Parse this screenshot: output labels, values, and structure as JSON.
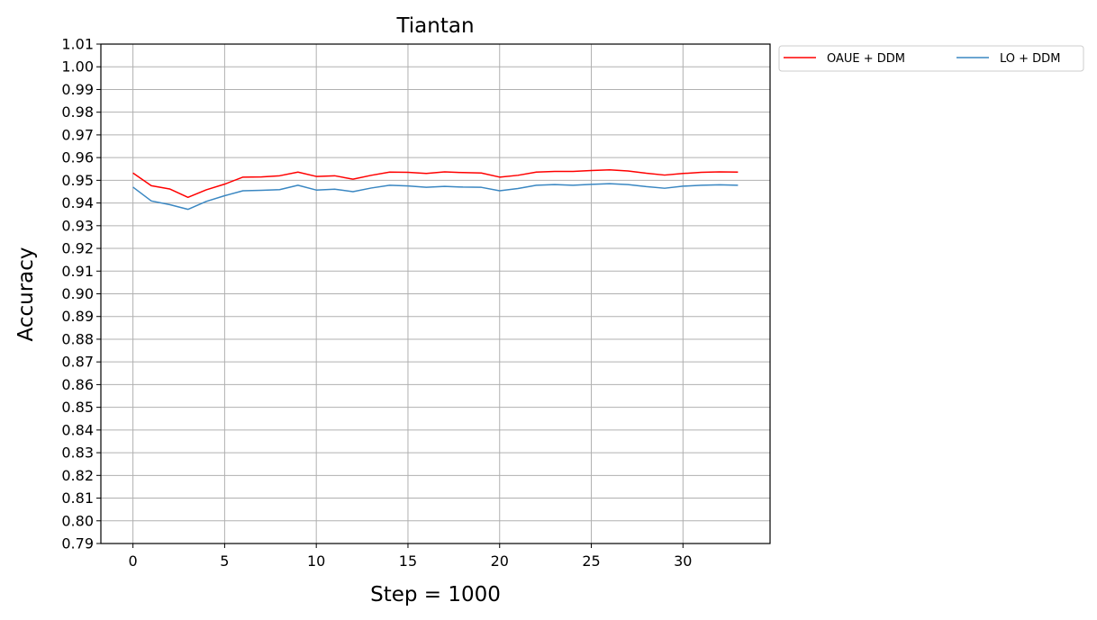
{
  "chart_data": {
    "type": "line",
    "title": "Tiantan",
    "xlabel": "Step = 1000",
    "ylabel": "Accuracy",
    "xlim": [
      -1.75,
      34.75
    ],
    "ylim": [
      0.79,
      1.01
    ],
    "xticks": [
      0,
      5,
      10,
      15,
      20,
      25,
      30
    ],
    "xtick_labels": [
      "0",
      "5",
      "10",
      "15",
      "20",
      "25",
      "30"
    ],
    "yticks": [
      0.79,
      0.8,
      0.81,
      0.82,
      0.83,
      0.84,
      0.85,
      0.86,
      0.87,
      0.88,
      0.89,
      0.9,
      0.91,
      0.92,
      0.93,
      0.94,
      0.95,
      0.96,
      0.97,
      0.98,
      0.99,
      1.0,
      1.01
    ],
    "ytick_labels": [
      "0.79",
      "0.80",
      "0.81",
      "0.82",
      "0.83",
      "0.84",
      "0.85",
      "0.86",
      "0.87",
      "0.88",
      "0.89",
      "0.90",
      "0.91",
      "0.92",
      "0.93",
      "0.94",
      "0.95",
      "0.96",
      "0.97",
      "0.98",
      "0.99",
      "1.00",
      "1.01"
    ],
    "grid": true,
    "legend_position": "outside-top-right",
    "x": [
      0,
      1,
      2,
      3,
      4,
      5,
      6,
      7,
      8,
      9,
      10,
      11,
      12,
      13,
      14,
      15,
      16,
      17,
      18,
      19,
      20,
      21,
      22,
      23,
      24,
      25,
      26,
      27,
      28,
      29,
      30,
      31,
      32,
      33
    ],
    "series": [
      {
        "name": "OAUE + DDM",
        "color": "#ff0000",
        "values": [
          0.9532,
          0.9476,
          0.9462,
          0.9425,
          0.9458,
          0.9483,
          0.9514,
          0.9515,
          0.952,
          0.9536,
          0.9517,
          0.952,
          0.9505,
          0.9522,
          0.9536,
          0.9535,
          0.953,
          0.9537,
          0.9534,
          0.9532,
          0.9514,
          0.9522,
          0.9536,
          0.9539,
          0.9539,
          0.9543,
          0.9546,
          0.9541,
          0.9531,
          0.9523,
          0.953,
          0.9535,
          0.9537,
          0.9536
        ]
      },
      {
        "name": "LO + DDM",
        "color": "#3a87c2",
        "values": [
          0.947,
          0.9409,
          0.9393,
          0.9372,
          0.9407,
          0.9432,
          0.9454,
          0.9456,
          0.9459,
          0.9478,
          0.9457,
          0.9461,
          0.945,
          0.9466,
          0.9478,
          0.9475,
          0.9469,
          0.9473,
          0.947,
          0.9469,
          0.9454,
          0.9464,
          0.9478,
          0.9481,
          0.9478,
          0.9482,
          0.9485,
          0.9481,
          0.9472,
          0.9465,
          0.9474,
          0.9478,
          0.948,
          0.9478
        ]
      }
    ]
  }
}
